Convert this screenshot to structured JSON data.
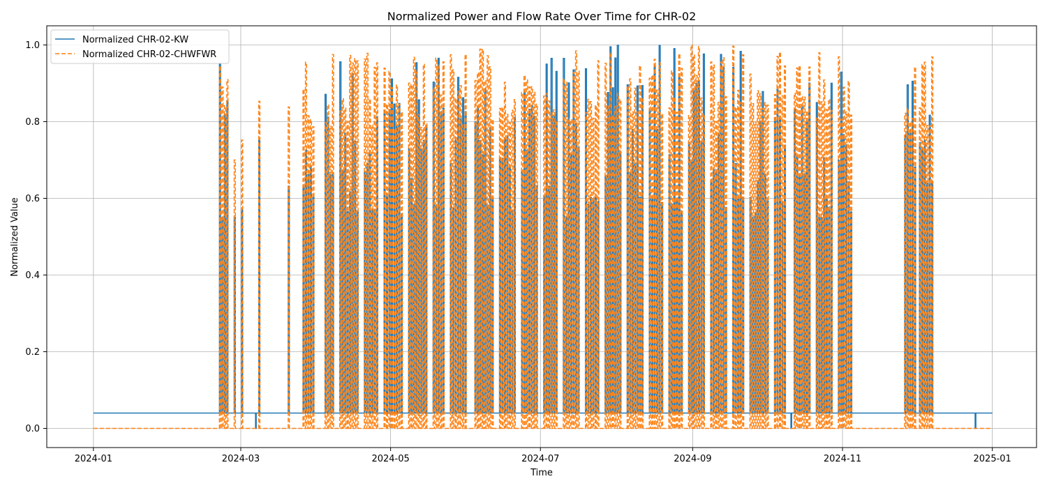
{
  "chart_data": {
    "type": "line",
    "title": "Normalized Power and Flow Rate Over Time for CHR-02",
    "xlabel": "Time",
    "ylabel": "Normalized Value",
    "xlim": [
      "2023-12-13",
      "2025-01-19"
    ],
    "ylim": [
      -0.05,
      1.05
    ],
    "x_ticks": [
      "2024-01",
      "2024-03",
      "2024-05",
      "2024-07",
      "2024-09",
      "2024-11",
      "2025-01"
    ],
    "y_ticks": [
      "0.0",
      "0.2",
      "0.4",
      "0.6",
      "0.8",
      "1.0"
    ],
    "grid": true,
    "legend_position": "top-left",
    "series": [
      {
        "name": "Normalized CHR-02-KW",
        "color": "#1f77b4",
        "style": "solid",
        "baseline": 0.04,
        "dips": [
          [
            "2024-03-07",
            0.0
          ],
          [
            "2024-10-11",
            0.0
          ],
          [
            "2024-12-25",
            0.0
          ]
        ]
      },
      {
        "name": "Normalized CHR-02-CHWFWR",
        "color": "#ff7f0e",
        "style": "dashed",
        "baseline": 0.0
      }
    ],
    "active_periods": [
      {
        "start": "2024-02-21",
        "end": "2024-02-24",
        "peak": 0.95
      },
      {
        "start": "2024-02-27",
        "end": "2024-02-27",
        "peak": 0.78
      },
      {
        "start": "2024-03-01",
        "end": "2024-03-01",
        "peak": 0.81
      },
      {
        "start": "2024-03-08",
        "end": "2024-03-08",
        "peak": 0.9
      },
      {
        "start": "2024-03-20",
        "end": "2024-03-20",
        "peak": 0.97
      },
      {
        "start": "2024-03-26",
        "end": "2024-03-30",
        "peak": 0.97
      },
      {
        "start": "2024-04-04",
        "end": "2024-04-07",
        "peak": 0.98
      },
      {
        "start": "2024-04-10",
        "end": "2024-04-17",
        "peak": 0.98
      },
      {
        "start": "2024-04-20",
        "end": "2024-04-25",
        "peak": 0.98
      },
      {
        "start": "2024-04-28",
        "end": "2024-05-05",
        "peak": 0.98
      },
      {
        "start": "2024-05-08",
        "end": "2024-05-15",
        "peak": 0.98
      },
      {
        "start": "2024-05-18",
        "end": "2024-05-22",
        "peak": 0.99
      },
      {
        "start": "2024-05-25",
        "end": "2024-05-31",
        "peak": 0.99
      },
      {
        "start": "2024-06-04",
        "end": "2024-06-11",
        "peak": 0.99
      },
      {
        "start": "2024-06-14",
        "end": "2024-06-20",
        "peak": 0.99
      },
      {
        "start": "2024-06-23",
        "end": "2024-06-29",
        "peak": 0.99
      },
      {
        "start": "2024-07-02",
        "end": "2024-07-07",
        "peak": 1.0
      },
      {
        "start": "2024-07-10",
        "end": "2024-07-16",
        "peak": 1.0
      },
      {
        "start": "2024-07-19",
        "end": "2024-07-24",
        "peak": 1.0
      },
      {
        "start": "2024-07-27",
        "end": "2024-08-02",
        "peak": 1.0
      },
      {
        "start": "2024-08-05",
        "end": "2024-08-11",
        "peak": 1.0
      },
      {
        "start": "2024-08-14",
        "end": "2024-08-19",
        "peak": 1.0
      },
      {
        "start": "2024-08-22",
        "end": "2024-08-27",
        "peak": 1.0
      },
      {
        "start": "2024-08-30",
        "end": "2024-09-05",
        "peak": 1.0
      },
      {
        "start": "2024-09-08",
        "end": "2024-09-14",
        "peak": 0.99
      },
      {
        "start": "2024-09-17",
        "end": "2024-09-21",
        "peak": 1.0
      },
      {
        "start": "2024-09-24",
        "end": "2024-10-01",
        "peak": 0.99
      },
      {
        "start": "2024-10-04",
        "end": "2024-10-08",
        "peak": 0.99
      },
      {
        "start": "2024-10-12",
        "end": "2024-10-18",
        "peak": 0.99
      },
      {
        "start": "2024-10-21",
        "end": "2024-10-27",
        "peak": 0.99
      },
      {
        "start": "2024-10-30",
        "end": "2024-11-04",
        "peak": 0.99
      },
      {
        "start": "2024-11-26",
        "end": "2024-11-30",
        "peak": 0.98
      },
      {
        "start": "2024-12-02",
        "end": "2024-12-07",
        "peak": 0.98
      }
    ]
  }
}
